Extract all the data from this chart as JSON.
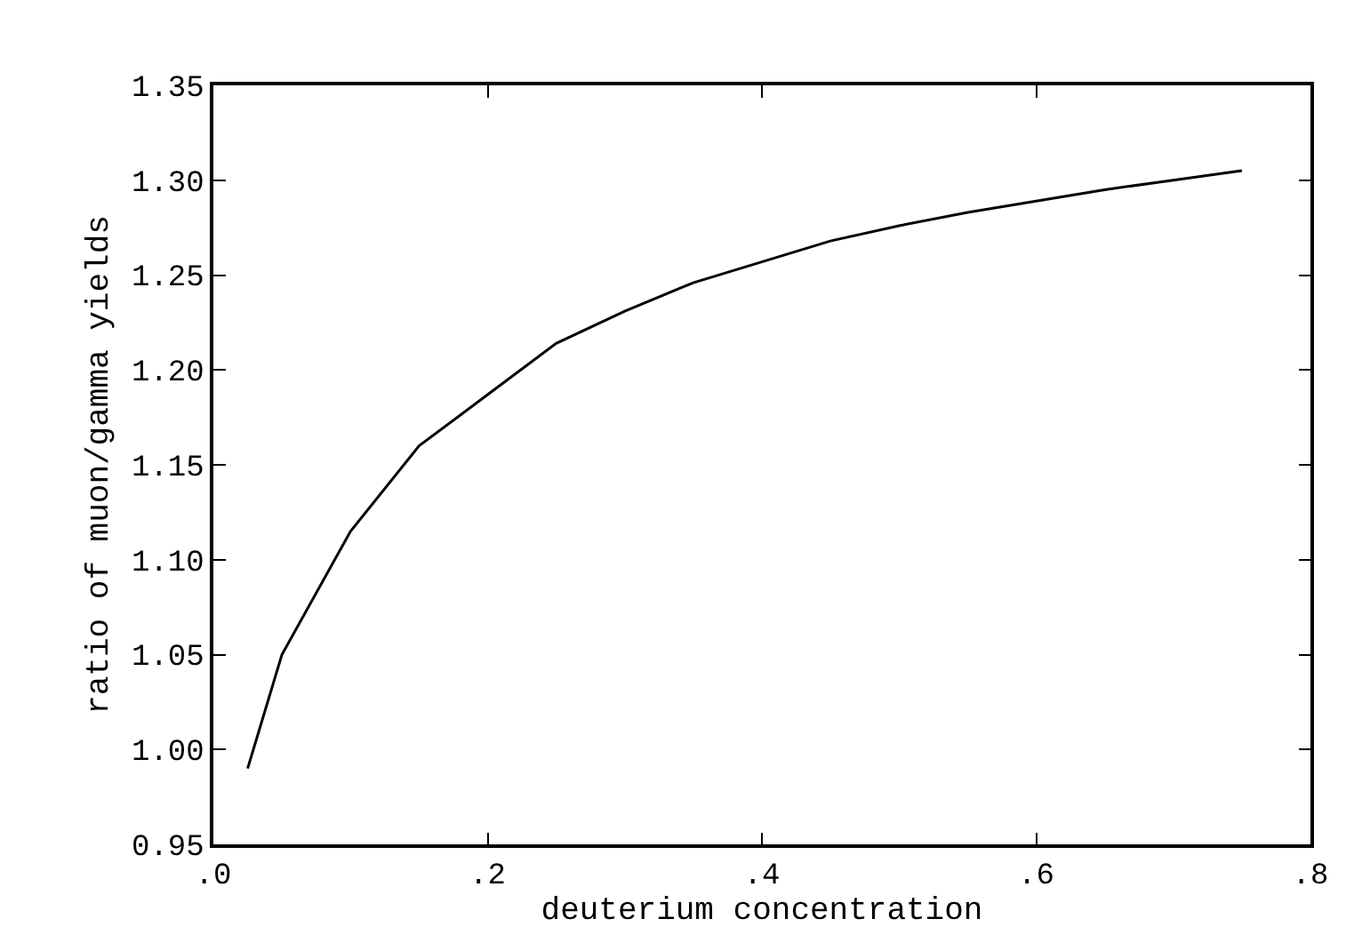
{
  "chart_data": {
    "type": "line",
    "xlabel": "deuterium concentration",
    "ylabel": "ratio of muon/gamma yields",
    "x": [
      0.025,
      0.05,
      0.1,
      0.15,
      0.2,
      0.25,
      0.3,
      0.35,
      0.4,
      0.45,
      0.5,
      0.55,
      0.6,
      0.65,
      0.7,
      0.75
    ],
    "series": [
      {
        "color": "#000000",
        "values": [
          0.99,
          1.05,
          1.115,
          1.16,
          1.187,
          1.214,
          1.231,
          1.246,
          1.257,
          1.268,
          1.276,
          1.283,
          1.289,
          1.295,
          1.3,
          1.305
        ]
      }
    ],
    "xlim": [
      0,
      0.8
    ],
    "ylim": [
      0.95,
      1.35
    ],
    "xticks": [
      {
        "value": 0,
        "label": ".0"
      },
      {
        "value": 0.2,
        "label": ".2"
      },
      {
        "value": 0.4,
        "label": ".4"
      },
      {
        "value": 0.6,
        "label": ".6"
      },
      {
        "value": 0.8,
        "label": ".8"
      }
    ],
    "yticks": [
      0.95,
      {
        "value": 1.0,
        "label": "1.00"
      },
      1.05,
      {
        "value": 1.1,
        "label": "1.10"
      },
      1.15,
      {
        "value": 1.2,
        "label": "1.20"
      },
      1.25,
      {
        "value": 1.3,
        "label": "1.30"
      },
      1.35
    ],
    "legend": false,
    "marker": "none",
    "line_style": "solid"
  }
}
